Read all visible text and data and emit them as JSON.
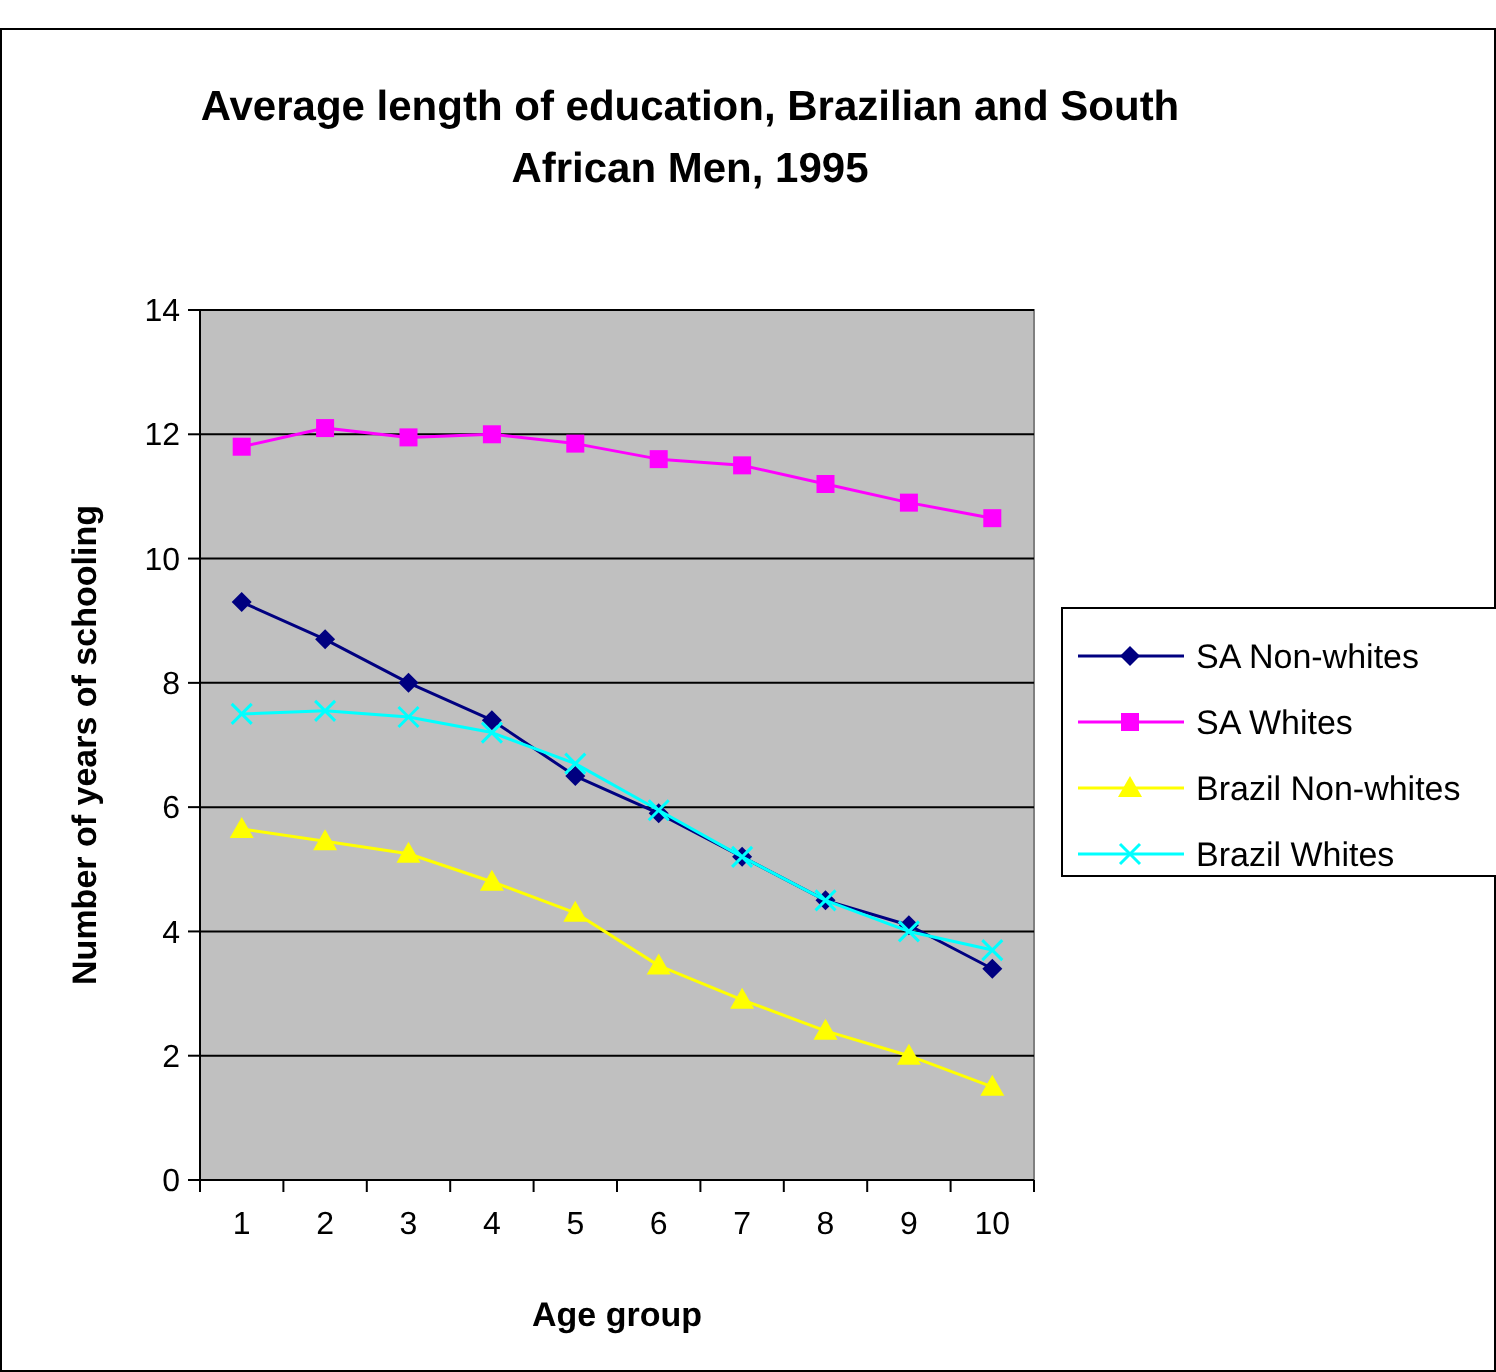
{
  "chart_data": {
    "type": "line",
    "title": "Average length of education, Brazilian and South African Men, 1995",
    "xlabel": "Age group",
    "ylabel": "Number of years of schooling",
    "categories": [
      "1",
      "2",
      "3",
      "4",
      "5",
      "6",
      "7",
      "8",
      "9",
      "10"
    ],
    "series": [
      {
        "name": "SA Non-whites",
        "color": "#000080",
        "marker": "diamond",
        "values": [
          9.3,
          8.7,
          8.0,
          7.4,
          6.5,
          5.9,
          5.2,
          4.5,
          4.1,
          3.4
        ]
      },
      {
        "name": "SA Whites",
        "color": "#ff00ff",
        "marker": "square",
        "values": [
          11.8,
          12.1,
          11.95,
          12.0,
          11.85,
          11.6,
          11.5,
          11.2,
          10.9,
          10.65
        ]
      },
      {
        "name": "Brazil Non-whites",
        "color": "#ffff00",
        "marker": "triangle",
        "values": [
          5.65,
          5.45,
          5.25,
          4.8,
          4.3,
          3.45,
          2.9,
          2.4,
          2.0,
          1.5
        ]
      },
      {
        "name": "Brazil Whites",
        "color": "#00ffff",
        "marker": "cross",
        "values": [
          7.5,
          7.55,
          7.45,
          7.2,
          6.7,
          5.95,
          5.2,
          4.5,
          4.0,
          3.7
        ]
      }
    ],
    "ylim": [
      0,
      14
    ],
    "yticks": [
      0,
      2,
      4,
      6,
      8,
      10,
      12,
      14
    ],
    "grid": "y",
    "legend": "right"
  }
}
